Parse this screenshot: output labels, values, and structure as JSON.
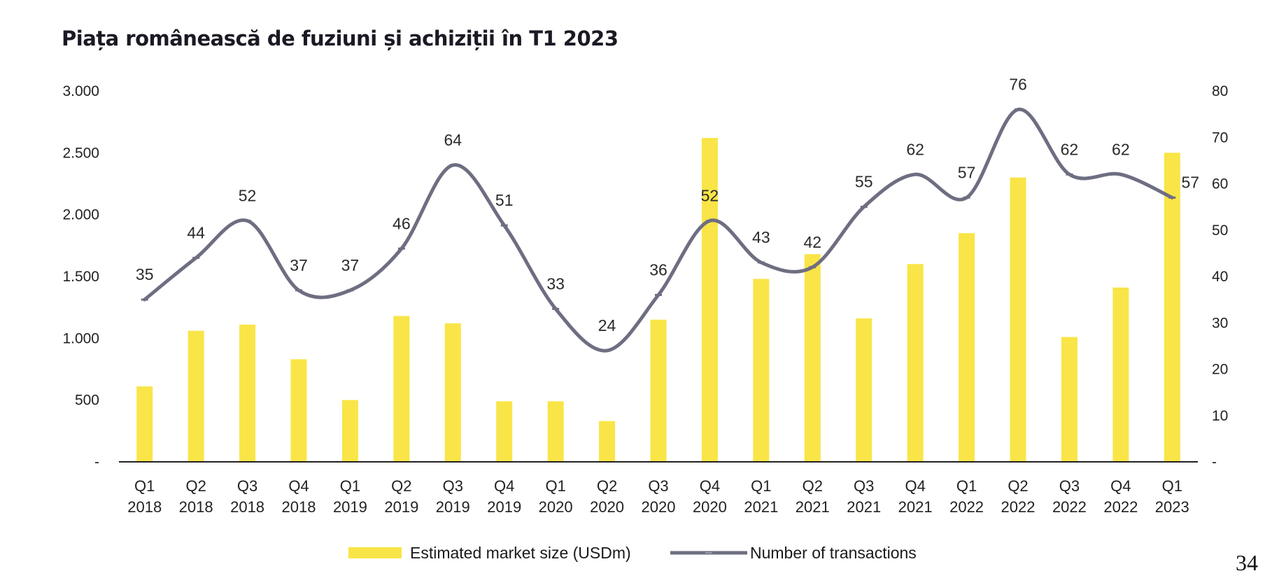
{
  "title": "Piața românească de fuziuni și achiziții în T1 2023",
  "page_number": "34",
  "colors": {
    "bars": "#f9e547",
    "line": "#6e6e82",
    "axis": "#222222"
  },
  "chart_data": {
    "type": "bar",
    "title": "Piața românească de fuziuni și achiziții în T1 2023",
    "categories": [
      [
        "Q1",
        "2018"
      ],
      [
        "Q2",
        "2018"
      ],
      [
        "Q3",
        "2018"
      ],
      [
        "Q4",
        "2018"
      ],
      [
        "Q1",
        "2019"
      ],
      [
        "Q2",
        "2019"
      ],
      [
        "Q3",
        "2019"
      ],
      [
        "Q4",
        "2019"
      ],
      [
        "Q1",
        "2020"
      ],
      [
        "Q2",
        "2020"
      ],
      [
        "Q3",
        "2020"
      ],
      [
        "Q4",
        "2020"
      ],
      [
        "Q1",
        "2021"
      ],
      [
        "Q2",
        "2021"
      ],
      [
        "Q3",
        "2021"
      ],
      [
        "Q4",
        "2021"
      ],
      [
        "Q1",
        "2022"
      ],
      [
        "Q2",
        "2022"
      ],
      [
        "Q3",
        "2022"
      ],
      [
        "Q4",
        "2022"
      ],
      [
        "Q1",
        "2023"
      ]
    ],
    "series": [
      {
        "name": "Estimated market size (USDm)",
        "type": "bar",
        "axis": "left",
        "values": [
          610,
          1060,
          1110,
          830,
          500,
          1180,
          1120,
          490,
          490,
          330,
          1150,
          2620,
          1480,
          1680,
          1160,
          1600,
          1850,
          2300,
          1010,
          1410,
          2500
        ]
      },
      {
        "name": "Number of transactions",
        "type": "line",
        "axis": "right",
        "smooth": true,
        "values": [
          35,
          44,
          52,
          37,
          37,
          46,
          64,
          51,
          33,
          24,
          36,
          52,
          43,
          42,
          55,
          62,
          57,
          76,
          62,
          62,
          57
        ]
      }
    ],
    "left_axis": {
      "ylim": [
        0,
        3000
      ],
      "ticks": [
        "-",
        "500",
        "1.000",
        "1.500",
        "2.000",
        "2.500",
        "3.000"
      ]
    },
    "right_axis": {
      "ylim": [
        0,
        80
      ],
      "ticks": [
        "-",
        "10",
        "20",
        "30",
        "40",
        "50",
        "60",
        "70",
        "80"
      ]
    },
    "legend": {
      "placement": "bottom-center"
    },
    "grid": false
  }
}
